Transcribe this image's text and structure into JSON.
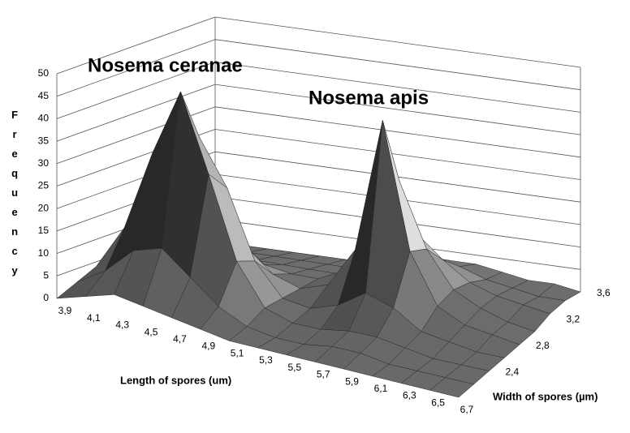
{
  "chart_data": {
    "type": "surface",
    "annotations": [
      "Nosema ceranae",
      "Nosema apis"
    ],
    "y_label": "Frequency",
    "x_label": "Length of spores (um)",
    "depth_label": "Width of spores (µm)",
    "categories": [
      "3,9",
      "4,1",
      "4,3",
      "4,5",
      "4,7",
      "4,9",
      "5,1",
      "5,3",
      "5,5",
      "5,7",
      "5,9",
      "6,1",
      "6,3",
      "6,5",
      "6,7"
    ],
    "depth_categories": [
      null,
      null,
      "2,4",
      null,
      "2,8",
      null,
      "3,2",
      null,
      "3,6"
    ],
    "values": [
      [
        0,
        2,
        4,
        3,
        2,
        1,
        0,
        0,
        0,
        0,
        0,
        0,
        0,
        0,
        0
      ],
      [
        2,
        6,
        12,
        14,
        9,
        4,
        1,
        0,
        0,
        1,
        1,
        0,
        0,
        0,
        0
      ],
      [
        4,
        14,
        32,
        47,
        30,
        12,
        3,
        1,
        1,
        2,
        2,
        1,
        0,
        0,
        0
      ],
      [
        3,
        10,
        24,
        35,
        25,
        10,
        3,
        2,
        4,
        8,
        6,
        2,
        1,
        0,
        0
      ],
      [
        1,
        4,
        10,
        14,
        10,
        5,
        3,
        5,
        14,
        44,
        16,
        5,
        2,
        1,
        0
      ],
      [
        0,
        2,
        4,
        5,
        4,
        3,
        3,
        6,
        12,
        28,
        14,
        6,
        3,
        1,
        0
      ],
      [
        0,
        1,
        2,
        2,
        2,
        2,
        2,
        4,
        8,
        14,
        9,
        5,
        3,
        2,
        1
      ],
      [
        0,
        0,
        1,
        1,
        1,
        1,
        1,
        2,
        4,
        6,
        5,
        3,
        2,
        1,
        1
      ],
      [
        0,
        0,
        0,
        0,
        0,
        0,
        0,
        1,
        2,
        3,
        3,
        2,
        1,
        1,
        0
      ]
    ],
    "ylim": [
      0,
      50
    ],
    "yticks": [
      0,
      5,
      10,
      15,
      20,
      25,
      30,
      35,
      40,
      45,
      50
    ],
    "grid": true
  }
}
